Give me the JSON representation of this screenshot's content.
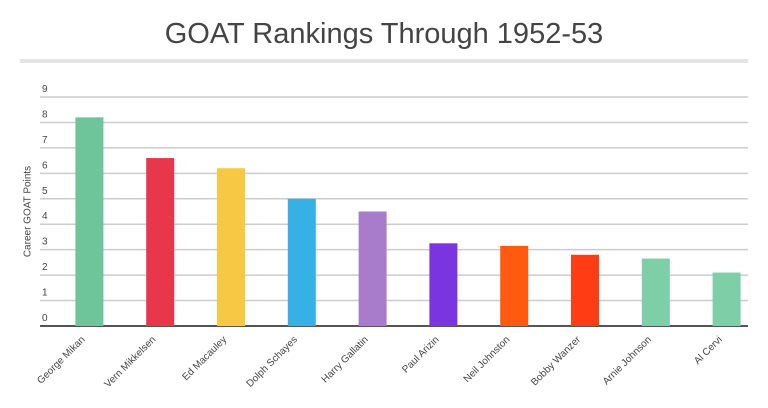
{
  "chart_data": {
    "type": "bar",
    "title": "GOAT Rankings Through 1952-53",
    "ylabel": "Career GOAT Points",
    "xlabel": "",
    "ylim": [
      0,
      9
    ],
    "yticks": [
      "0",
      "1",
      "2",
      "3",
      "4",
      "5",
      "6",
      "7",
      "8",
      "9"
    ],
    "grid": true,
    "categories": [
      "George Mikan",
      "Vern Mikkelsen",
      "Ed Macauley",
      "Dolph Schayes",
      "Harry Gallatin",
      "Paul Arizin",
      "Neil Johnston",
      "Bobby Wanzer",
      "Arnie Johnson",
      "Al Cervi"
    ],
    "values": [
      8.2,
      6.6,
      6.2,
      5.0,
      4.5,
      3.25,
      3.15,
      2.8,
      2.65,
      2.1
    ],
    "colors": [
      "#6fc59a",
      "#e8364a",
      "#f7c843",
      "#35b1e5",
      "#a97ccb",
      "#7b35e0",
      "#ff5a0f",
      "#ff3c14",
      "#7ecfa7",
      "#7ecfa7"
    ]
  }
}
